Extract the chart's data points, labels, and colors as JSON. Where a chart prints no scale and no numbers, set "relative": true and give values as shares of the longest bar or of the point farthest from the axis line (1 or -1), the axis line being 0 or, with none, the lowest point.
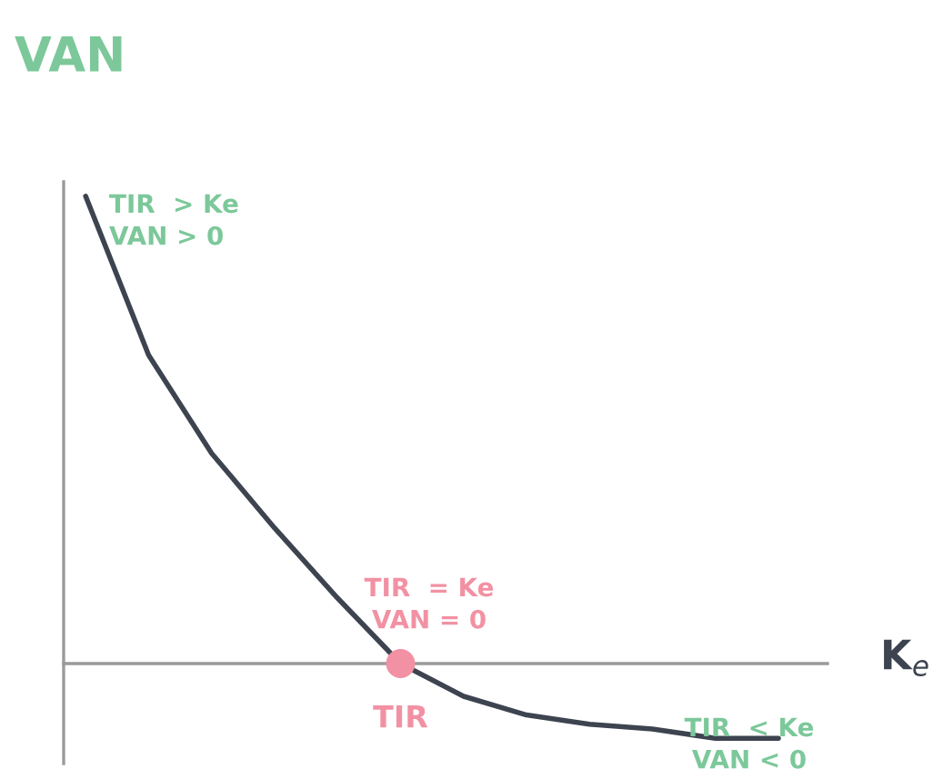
{
  "chart_data": {
    "type": "line",
    "relative": true,
    "ylabel": "VAN",
    "xlabel": "K$_{e}$",
    "categories": [
      null,
      null,
      null,
      null,
      null,
      null,
      null,
      null,
      null,
      null,
      null,
      null
    ],
    "series": [
      {
        "color": "#3d4450",
        "values": [
          1,
          0.66,
          0.45,
          0.29,
          0.14,
          0,
          -0.07,
          -0.11,
          -0.13,
          -0.14,
          -0.16,
          -0.16
        ]
      }
    ],
    "annotations": [
      "TIR  > Ke\nVAN > 0",
      "TIR  = Ke\nVAN = 0",
      {
        "text": "TIR",
        "y": 0
      },
      "TIR  < Ke\nVAN < 0"
    ]
  }
}
